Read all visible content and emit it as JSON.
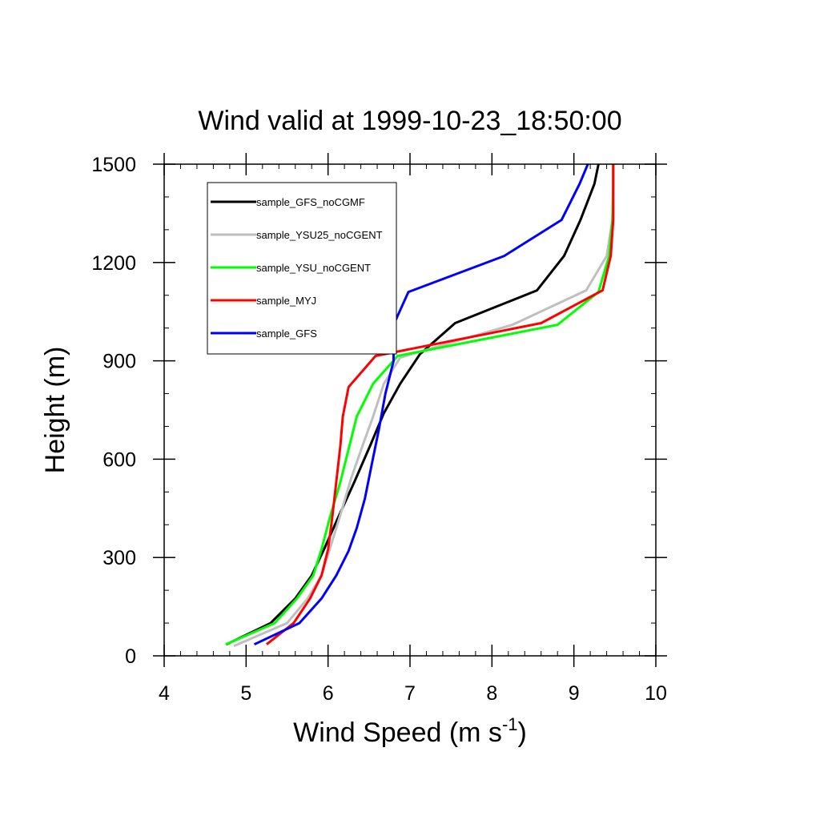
{
  "chart_data": {
    "type": "line",
    "title": "Wind valid at 1999-10-23_18:50:00",
    "xlabel": "Wind Speed (m s",
    "xlabel_sup": "-1",
    "xlabel_end": ")",
    "ylabel": "Height (m)",
    "xlim": [
      4,
      10
    ],
    "ylim": [
      0,
      1500
    ],
    "x_ticks": [
      4,
      5,
      6,
      7,
      8,
      9,
      10
    ],
    "y_ticks": [
      0,
      300,
      600,
      900,
      1200,
      1500
    ],
    "grid": false,
    "legend_position": "top-left",
    "series": [
      {
        "name": "sample_GFS_noCGMF",
        "color": "#000000",
        "points": [
          [
            4.76,
            35
          ],
          [
            5.3,
            100
          ],
          [
            5.6,
            175
          ],
          [
            5.8,
            245
          ],
          [
            5.95,
            325
          ],
          [
            6.12,
            420
          ],
          [
            6.32,
            530
          ],
          [
            6.52,
            645
          ],
          [
            6.68,
            740
          ],
          [
            6.88,
            830
          ],
          [
            7.12,
            920
          ],
          [
            7.55,
            1015
          ],
          [
            8.55,
            1115
          ],
          [
            8.88,
            1220
          ],
          [
            9.08,
            1330
          ],
          [
            9.25,
            1440
          ],
          [
            9.3,
            1500
          ]
        ]
      },
      {
        "name": "sample_YSU25_noCGENT",
        "color": "#bfbfbf",
        "points": [
          [
            4.85,
            30
          ],
          [
            5.5,
            100
          ],
          [
            5.75,
            175
          ],
          [
            5.92,
            245
          ],
          [
            6.02,
            325
          ],
          [
            6.15,
            430
          ],
          [
            6.28,
            540
          ],
          [
            6.42,
            640
          ],
          [
            6.55,
            730
          ],
          [
            6.68,
            830
          ],
          [
            6.88,
            910
          ],
          [
            8.25,
            1010
          ],
          [
            9.15,
            1115
          ],
          [
            9.4,
            1220
          ],
          [
            9.47,
            1330
          ],
          [
            9.48,
            1440
          ],
          [
            9.48,
            1500
          ]
        ]
      },
      {
        "name": "sample_YSU_noCGENT",
        "color": "#00ff00",
        "points": [
          [
            4.75,
            35
          ],
          [
            5.35,
            100
          ],
          [
            5.62,
            175
          ],
          [
            5.82,
            245
          ],
          [
            5.92,
            325
          ],
          [
            6.02,
            420
          ],
          [
            6.15,
            530
          ],
          [
            6.35,
            730
          ],
          [
            6.55,
            830
          ],
          [
            6.85,
            915
          ],
          [
            8.8,
            1010
          ],
          [
            9.3,
            1110
          ],
          [
            9.43,
            1220
          ],
          [
            9.47,
            1330
          ],
          [
            9.48,
            1440
          ],
          [
            9.48,
            1500
          ]
        ]
      },
      {
        "name": "sample_MYJ",
        "color": "#ff0000",
        "points": [
          [
            5.25,
            35
          ],
          [
            5.58,
            100
          ],
          [
            5.78,
            175
          ],
          [
            5.92,
            245
          ],
          [
            6.0,
            325
          ],
          [
            6.05,
            420
          ],
          [
            6.1,
            530
          ],
          [
            6.15,
            640
          ],
          [
            6.18,
            730
          ],
          [
            6.25,
            820
          ],
          [
            6.58,
            915
          ],
          [
            8.6,
            1015
          ],
          [
            9.35,
            1115
          ],
          [
            9.45,
            1220
          ],
          [
            9.48,
            1330
          ],
          [
            9.48,
            1440
          ],
          [
            9.48,
            1500
          ]
        ]
      },
      {
        "name": "sample_GFS",
        "color": "#0000ff",
        "points": [
          [
            5.1,
            35
          ],
          [
            5.65,
            100
          ],
          [
            5.92,
            175
          ],
          [
            6.1,
            245
          ],
          [
            6.25,
            320
          ],
          [
            6.35,
            390
          ],
          [
            6.45,
            480
          ],
          [
            6.53,
            580
          ],
          [
            6.62,
            690
          ],
          [
            6.7,
            800
          ],
          [
            6.8,
            900
          ],
          [
            6.8,
            1010
          ],
          [
            6.98,
            1110
          ],
          [
            8.15,
            1220
          ],
          [
            8.85,
            1330
          ],
          [
            9.07,
            1440
          ],
          [
            9.17,
            1500
          ]
        ]
      }
    ]
  }
}
